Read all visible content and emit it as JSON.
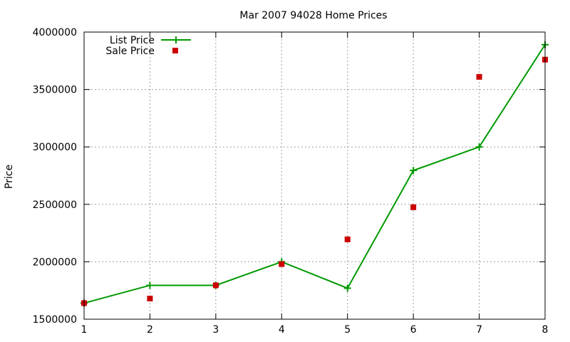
{
  "chart_data": {
    "type": "line",
    "title": "Mar 2007 94028 Home Prices",
    "xlabel": "",
    "ylabel": "Price",
    "x": [
      1,
      2,
      3,
      4,
      5,
      6,
      7,
      8
    ],
    "xlim": [
      1,
      8
    ],
    "ylim": [
      1500000,
      4000000
    ],
    "xticks": [
      1,
      2,
      3,
      4,
      5,
      6,
      7,
      8
    ],
    "yticks": [
      1500000,
      2000000,
      2500000,
      3000000,
      3500000,
      4000000
    ],
    "grid": true,
    "legend_position": "top-left",
    "series": [
      {
        "name": "List Price",
        "type": "linespoints",
        "marker": "plus",
        "color": "#009900",
        "values": [
          1640000,
          1795000,
          1795000,
          2000000,
          1770000,
          2795000,
          3000000,
          3890000
        ]
      },
      {
        "name": "Sale Price",
        "type": "scatter",
        "marker": "square",
        "color": "#cc0000",
        "values": [
          1640000,
          1680000,
          1795000,
          1980000,
          2195000,
          2475000,
          3610000,
          3760000
        ]
      }
    ]
  }
}
